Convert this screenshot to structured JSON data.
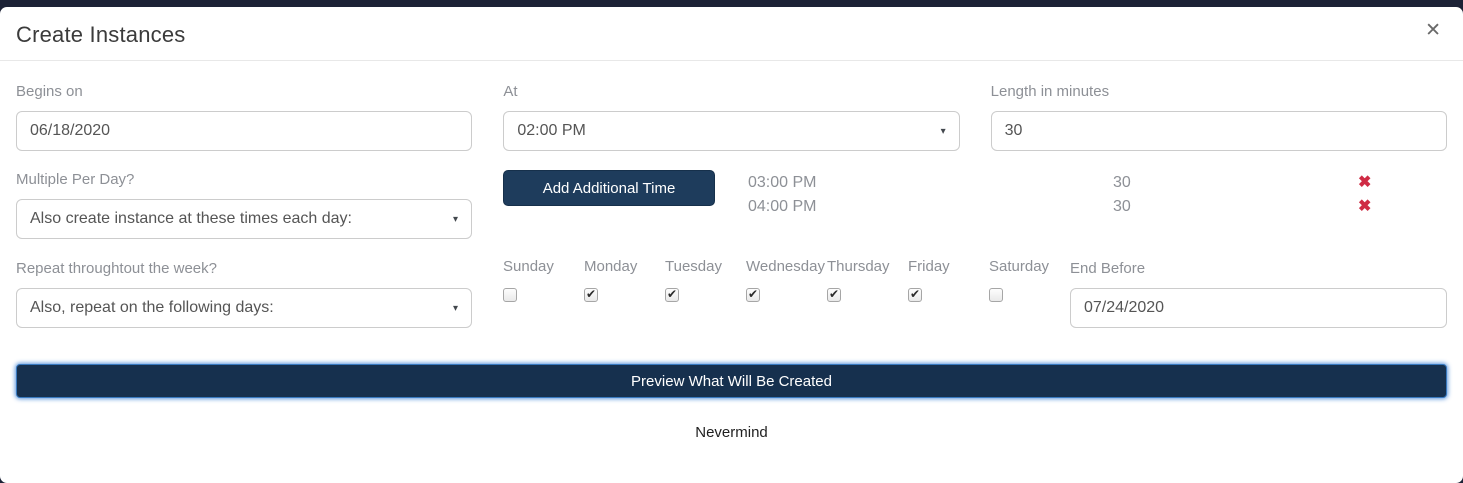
{
  "modal": {
    "title": "Create Instances"
  },
  "icons": {
    "close": "✕",
    "caret": "▾",
    "remove": "✖"
  },
  "fields": {
    "begins_on": {
      "label": "Begins on",
      "value": "06/18/2020"
    },
    "at": {
      "label": "At",
      "value": "02:00 PM"
    },
    "length": {
      "label": "Length in minutes",
      "value": "30"
    },
    "multiple_per_day": {
      "label": "Multiple Per Day?",
      "value": "Also create instance at these times each day:"
    },
    "repeat_week": {
      "label": "Repeat throughtout the week?",
      "value": "Also, repeat on the following days:"
    },
    "end_before": {
      "label": "End Before",
      "value": "07/24/2020"
    }
  },
  "additional_times": {
    "button_label": "Add Additional Time",
    "rows": [
      {
        "time": "03:00 PM",
        "length": "30"
      },
      {
        "time": "04:00 PM",
        "length": "30"
      }
    ]
  },
  "days": [
    {
      "label": "Sunday",
      "checked": false
    },
    {
      "label": "Monday",
      "checked": true
    },
    {
      "label": "Tuesday",
      "checked": true
    },
    {
      "label": "Wednesday",
      "checked": true
    },
    {
      "label": "Thursday",
      "checked": true
    },
    {
      "label": "Friday",
      "checked": true
    },
    {
      "label": "Saturday",
      "checked": false
    }
  ],
  "actions": {
    "preview": "Preview What Will Be Created",
    "nevermind": "Nevermind"
  },
  "colors": {
    "brand_navy": "#1e3c5c",
    "preview_navy": "#16304e",
    "danger_red": "#cf2b44",
    "label_gray": "#8d9096"
  }
}
